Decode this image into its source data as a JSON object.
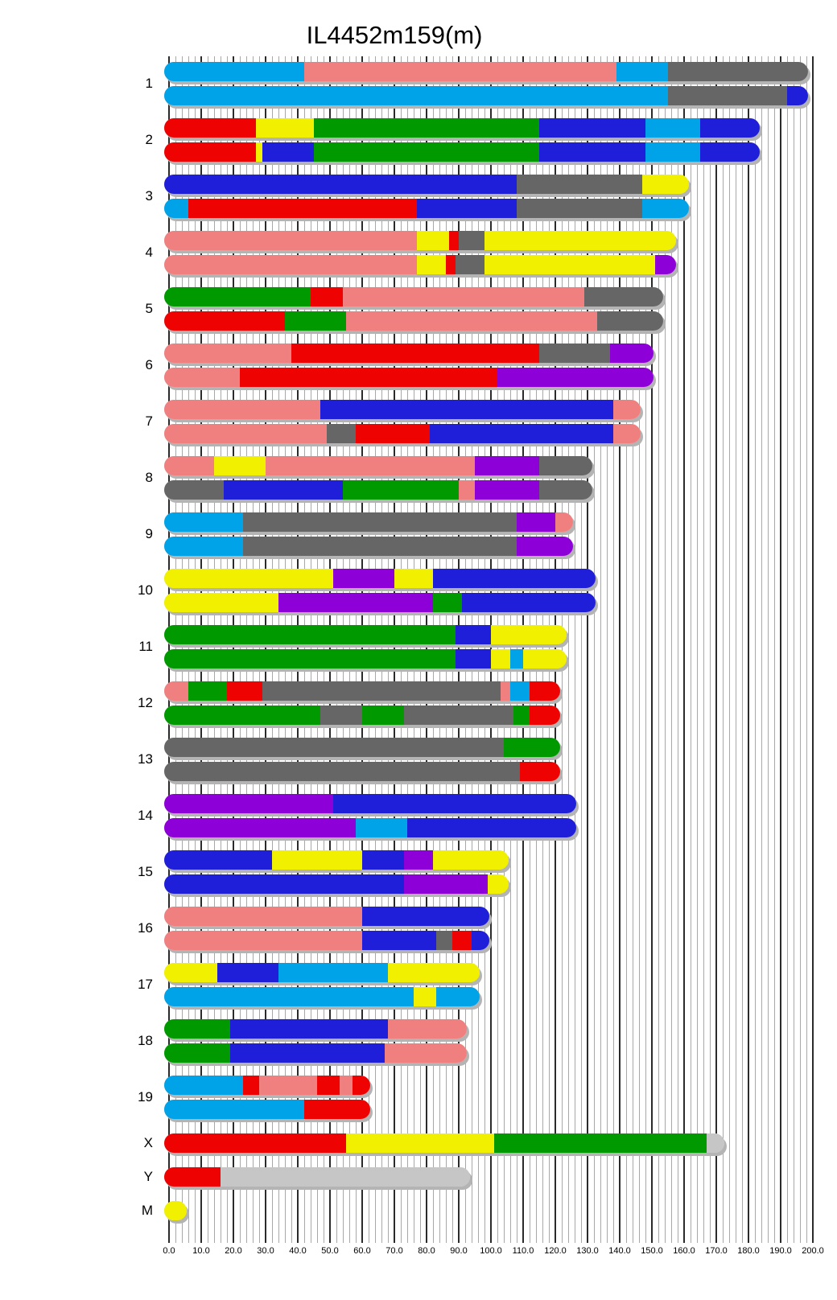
{
  "title": "IL4452m159(m)",
  "chart_data": {
    "type": "heatmap",
    "subtype": "karyotype-ideogram",
    "title": "IL4452m159(m)",
    "xlabel": "",
    "ylabel": "",
    "x_axis": {
      "min": 0,
      "max": 200,
      "major_step": 10,
      "minor_step": 2,
      "tick_labels": [
        "0.0",
        "10.0",
        "20.0",
        "30.0",
        "40.0",
        "50.0",
        "60.0",
        "70.0",
        "80.0",
        "90.0",
        "100.0",
        "110.0",
        "120.0",
        "130.0",
        "140.0",
        "150.0",
        "160.0",
        "170.0",
        "180.0",
        "190.0",
        "200.0"
      ],
      "grid": true
    },
    "legend": null,
    "palette": {
      "skyblue": "#00a2e8",
      "salmon": "#f08080",
      "red": "#ee0202",
      "yellow": "#f0f000",
      "green": "#009a00",
      "blue": "#1f1fd9",
      "gray": "#666666",
      "purple": "#8e00d8",
      "silver": "#c6c6c6"
    },
    "chromosomes": [
      {
        "name": "1",
        "length": 197,
        "bars": [
          [
            [
              "skyblue",
              0,
              42
            ],
            [
              "salmon",
              42,
              139
            ],
            [
              "skyblue",
              139,
              155
            ],
            [
              "gray",
              155,
              197
            ]
          ],
          [
            [
              "skyblue",
              0,
              155
            ],
            [
              "gray",
              155,
              192
            ],
            [
              "blue",
              192,
              197
            ]
          ]
        ]
      },
      {
        "name": "2",
        "length": 182,
        "bars": [
          [
            [
              "red",
              0,
              27
            ],
            [
              "yellow",
              27,
              45
            ],
            [
              "green",
              45,
              115
            ],
            [
              "blue",
              115,
              148
            ],
            [
              "skyblue",
              148,
              165
            ],
            [
              "blue",
              165,
              182
            ]
          ],
          [
            [
              "red",
              0,
              27
            ],
            [
              "yellow",
              27,
              29
            ],
            [
              "blue",
              29,
              45
            ],
            [
              "green",
              45,
              115
            ],
            [
              "blue",
              115,
              148
            ],
            [
              "skyblue",
              148,
              165
            ],
            [
              "blue",
              165,
              182
            ]
          ]
        ]
      },
      {
        "name": "3",
        "length": 160,
        "bars": [
          [
            [
              "blue",
              0,
              108
            ],
            [
              "gray",
              108,
              147
            ],
            [
              "yellow",
              147,
              160
            ]
          ],
          [
            [
              "skyblue",
              0,
              6
            ],
            [
              "red",
              6,
              77
            ],
            [
              "blue",
              77,
              108
            ],
            [
              "gray",
              108,
              147
            ],
            [
              "skyblue",
              147,
              160
            ]
          ]
        ]
      },
      {
        "name": "4",
        "length": 156,
        "bars": [
          [
            [
              "salmon",
              0,
              77
            ],
            [
              "yellow",
              77,
              87
            ],
            [
              "red",
              87,
              90
            ],
            [
              "gray",
              90,
              98
            ],
            [
              "yellow",
              98,
              156
            ]
          ],
          [
            [
              "salmon",
              0,
              77
            ],
            [
              "yellow",
              77,
              86
            ],
            [
              "red",
              86,
              89
            ],
            [
              "gray",
              89,
              98
            ],
            [
              "yellow",
              98,
              151
            ],
            [
              "purple",
              151,
              156
            ]
          ]
        ]
      },
      {
        "name": "5",
        "length": 152,
        "bars": [
          [
            [
              "green",
              0,
              44
            ],
            [
              "red",
              44,
              54
            ],
            [
              "salmon",
              54,
              129
            ],
            [
              "gray",
              129,
              152
            ]
          ],
          [
            [
              "red",
              0,
              36
            ],
            [
              "green",
              36,
              55
            ],
            [
              "salmon",
              55,
              133
            ],
            [
              "gray",
              133,
              152
            ]
          ]
        ]
      },
      {
        "name": "6",
        "length": 149,
        "bars": [
          [
            [
              "salmon",
              0,
              38
            ],
            [
              "red",
              38,
              115
            ],
            [
              "gray",
              115,
              137
            ],
            [
              "purple",
              137,
              149
            ]
          ],
          [
            [
              "salmon",
              0,
              22
            ],
            [
              "red",
              22,
              102
            ],
            [
              "purple",
              102,
              149
            ]
          ]
        ]
      },
      {
        "name": "7",
        "length": 145,
        "bars": [
          [
            [
              "salmon",
              0,
              47
            ],
            [
              "blue",
              47,
              138
            ],
            [
              "salmon",
              138,
              145
            ]
          ],
          [
            [
              "salmon",
              0,
              49
            ],
            [
              "gray",
              49,
              58
            ],
            [
              "red",
              58,
              81
            ],
            [
              "blue",
              81,
              138
            ],
            [
              "salmon",
              138,
              145
            ]
          ]
        ]
      },
      {
        "name": "8",
        "length": 130,
        "bars": [
          [
            [
              "salmon",
              0,
              14
            ],
            [
              "yellow",
              14,
              30
            ],
            [
              "salmon",
              30,
              95
            ],
            [
              "purple",
              95,
              115
            ],
            [
              "gray",
              115,
              130
            ]
          ],
          [
            [
              "gray",
              0,
              17
            ],
            [
              "blue",
              17,
              54
            ],
            [
              "green",
              54,
              90
            ],
            [
              "salmon",
              90,
              95
            ],
            [
              "purple",
              95,
              115
            ],
            [
              "gray",
              115,
              130
            ]
          ]
        ]
      },
      {
        "name": "9",
        "length": 124,
        "bars": [
          [
            [
              "skyblue",
              0,
              23
            ],
            [
              "gray",
              23,
              108
            ],
            [
              "purple",
              108,
              120
            ],
            [
              "salmon",
              120,
              124
            ]
          ],
          [
            [
              "skyblue",
              0,
              23
            ],
            [
              "gray",
              23,
              108
            ],
            [
              "purple",
              108,
              124
            ]
          ]
        ]
      },
      {
        "name": "10",
        "length": 131,
        "bars": [
          [
            [
              "yellow",
              0,
              51
            ],
            [
              "purple",
              51,
              70
            ],
            [
              "yellow",
              70,
              82
            ],
            [
              "blue",
              82,
              131
            ]
          ],
          [
            [
              "yellow",
              0,
              34
            ],
            [
              "purple",
              34,
              82
            ],
            [
              "green",
              82,
              91
            ],
            [
              "blue",
              91,
              131
            ]
          ]
        ]
      },
      {
        "name": "11",
        "length": 122,
        "bars": [
          [
            [
              "green",
              0,
              89
            ],
            [
              "blue",
              89,
              100
            ],
            [
              "yellow",
              100,
              122
            ]
          ],
          [
            [
              "green",
              0,
              89
            ],
            [
              "blue",
              89,
              100
            ],
            [
              "yellow",
              100,
              106
            ],
            [
              "skyblue",
              106,
              110
            ],
            [
              "yellow",
              110,
              122
            ]
          ]
        ]
      },
      {
        "name": "12",
        "length": 120,
        "bars": [
          [
            [
              "salmon",
              0,
              6
            ],
            [
              "green",
              6,
              18
            ],
            [
              "red",
              18,
              29
            ],
            [
              "gray",
              29,
              103
            ],
            [
              "salmon",
              103,
              106
            ],
            [
              "skyblue",
              106,
              112
            ],
            [
              "red",
              112,
              120
            ]
          ],
          [
            [
              "green",
              0,
              47
            ],
            [
              "gray",
              47,
              60
            ],
            [
              "green",
              60,
              73
            ],
            [
              "gray",
              73,
              107
            ],
            [
              "green",
              107,
              112
            ],
            [
              "red",
              112,
              120
            ]
          ]
        ]
      },
      {
        "name": "13",
        "length": 120,
        "bars": [
          [
            [
              "gray",
              0,
              104
            ],
            [
              "green",
              104,
              120
            ]
          ],
          [
            [
              "gray",
              0,
              109
            ],
            [
              "red",
              109,
              120
            ]
          ]
        ]
      },
      {
        "name": "14",
        "length": 125,
        "bars": [
          [
            [
              "purple",
              0,
              51
            ],
            [
              "blue",
              51,
              125
            ]
          ],
          [
            [
              "purple",
              0,
              58
            ],
            [
              "skyblue",
              58,
              74
            ],
            [
              "blue",
              74,
              125
            ]
          ]
        ]
      },
      {
        "name": "15",
        "length": 104,
        "bars": [
          [
            [
              "blue",
              0,
              32
            ],
            [
              "yellow",
              32,
              60
            ],
            [
              "blue",
              60,
              73
            ],
            [
              "purple",
              73,
              82
            ],
            [
              "yellow",
              82,
              104
            ]
          ],
          [
            [
              "blue",
              0,
              73
            ],
            [
              "purple",
              73,
              99
            ],
            [
              "yellow",
              99,
              104
            ]
          ]
        ]
      },
      {
        "name": "16",
        "length": 98,
        "bars": [
          [
            [
              "salmon",
              0,
              60
            ],
            [
              "blue",
              60,
              98
            ]
          ],
          [
            [
              "salmon",
              0,
              60
            ],
            [
              "blue",
              60,
              83
            ],
            [
              "gray",
              83,
              88
            ],
            [
              "red",
              88,
              94
            ],
            [
              "blue",
              94,
              98
            ]
          ]
        ]
      },
      {
        "name": "17",
        "length": 95,
        "bars": [
          [
            [
              "yellow",
              0,
              15
            ],
            [
              "blue",
              15,
              34
            ],
            [
              "skyblue",
              34,
              68
            ],
            [
              "yellow",
              68,
              95
            ]
          ],
          [
            [
              "skyblue",
              0,
              76
            ],
            [
              "yellow",
              76,
              83
            ],
            [
              "skyblue",
              83,
              95
            ]
          ]
        ]
      },
      {
        "name": "18",
        "length": 91,
        "bars": [
          [
            [
              "green",
              0,
              19
            ],
            [
              "blue",
              19,
              68
            ],
            [
              "salmon",
              68,
              91
            ]
          ],
          [
            [
              "green",
              0,
              19
            ],
            [
              "blue",
              19,
              67
            ],
            [
              "salmon",
              67,
              91
            ]
          ]
        ]
      },
      {
        "name": "19",
        "length": 61,
        "bars": [
          [
            [
              "skyblue",
              0,
              23
            ],
            [
              "red",
              23,
              28
            ],
            [
              "salmon",
              28,
              46
            ],
            [
              "red",
              46,
              53
            ],
            [
              "salmon",
              53,
              57
            ],
            [
              "red",
              57,
              61
            ]
          ],
          [
            [
              "skyblue",
              0,
              42
            ],
            [
              "red",
              42,
              61
            ]
          ]
        ]
      },
      {
        "name": "X",
        "length": 171,
        "bars": [
          [
            [
              "red",
              0,
              55
            ],
            [
              "yellow",
              55,
              101
            ],
            [
              "green",
              101,
              167
            ],
            [
              "silver",
              167,
              171
            ]
          ]
        ]
      },
      {
        "name": "Y",
        "length": 92,
        "bars": [
          [
            [
              "red",
              0,
              16
            ],
            [
              "silver",
              16,
              92
            ]
          ]
        ]
      },
      {
        "name": "M",
        "length": 4,
        "bars": [
          [
            [
              "yellow",
              0,
              4
            ]
          ]
        ]
      }
    ]
  }
}
